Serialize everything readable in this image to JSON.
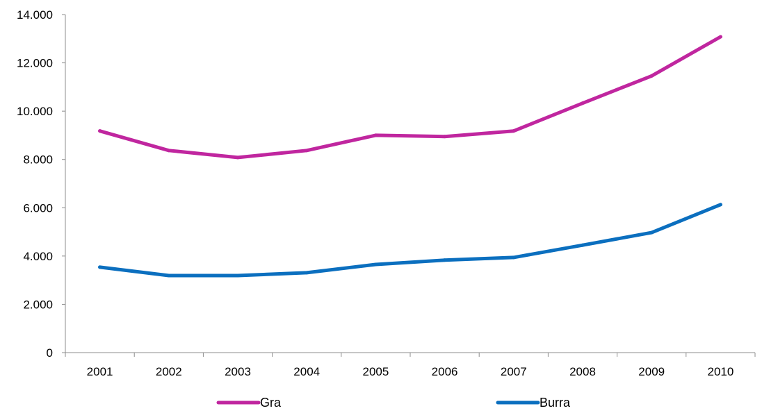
{
  "chart_data": {
    "type": "line",
    "x": [
      "2001",
      "2002",
      "2003",
      "2004",
      "2005",
      "2006",
      "2007",
      "2008",
      "2009",
      "2010"
    ],
    "series": [
      {
        "name": "Gra",
        "color": "#c0269f",
        "values": [
          9180,
          8370,
          8080,
          8370,
          9000,
          8950,
          9180,
          10330,
          11460,
          13080
        ]
      },
      {
        "name": "Burra",
        "color": "#0b6fbf",
        "values": [
          3540,
          3190,
          3190,
          3310,
          3650,
          3830,
          3940,
          4450,
          4970,
          6130
        ]
      }
    ],
    "y_ticks": [
      "0",
      "2.000",
      "4.000",
      "6.000",
      "8.000",
      "10.000",
      "12.000",
      "14.000"
    ],
    "ylim": [
      0,
      14000
    ],
    "ytick_step": 2000,
    "grid": false,
    "legend_position": "bottom"
  }
}
